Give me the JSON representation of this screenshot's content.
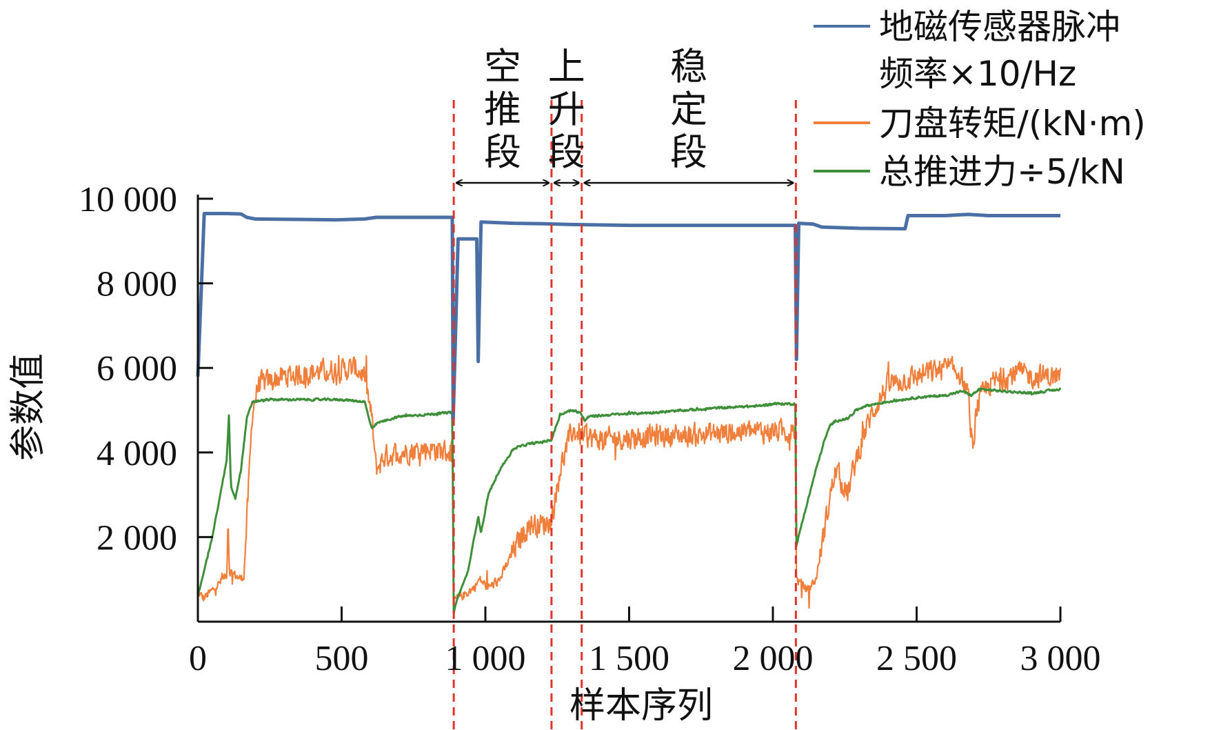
{
  "chart_data": {
    "type": "line",
    "xlabel": "样本序列",
    "ylabel": "参数值",
    "xlim": [
      0,
      3000
    ],
    "ylim": [
      0,
      10000
    ],
    "xticks": [
      0,
      500,
      1000,
      1500,
      2000,
      2500,
      3000
    ],
    "xtick_labels": [
      "0",
      "500",
      "1 000",
      "1 500",
      "2 000",
      "2 500",
      "3 000"
    ],
    "yticks": [
      2000,
      4000,
      6000,
      8000,
      10000
    ],
    "ytick_labels": [
      "2 000",
      "4 000",
      "6 000",
      "8 000",
      "10 000"
    ],
    "grid": false,
    "legend_position": "top-right",
    "legend": [
      {
        "line1": "地磁传感器脉冲",
        "line2": "频率×10/Hz"
      },
      {
        "line1": "刀盘转矩/(kN·m)"
      },
      {
        "line1": "总推进力÷5/kN"
      }
    ],
    "phase_boundaries": [
      890,
      1230,
      1335,
      2080
    ],
    "phases": [
      {
        "label": "空推段",
        "from": 890,
        "to": 1230
      },
      {
        "label": "上升段",
        "from": 1230,
        "to": 1335
      },
      {
        "label": "稳定段",
        "from": 1335,
        "to": 2080
      }
    ],
    "series": [
      {
        "name": "地磁传感器脉冲频率×10/Hz",
        "color": "#4a6fa5",
        "noise": 0,
        "points": [
          [
            0,
            5800
          ],
          [
            22,
            9650
          ],
          [
            100,
            9650
          ],
          [
            150,
            9640
          ],
          [
            170,
            9560
          ],
          [
            200,
            9520
          ],
          [
            350,
            9510
          ],
          [
            480,
            9500
          ],
          [
            580,
            9520
          ],
          [
            620,
            9560
          ],
          [
            720,
            9560
          ],
          [
            885,
            9560
          ],
          [
            888,
            4800
          ],
          [
            895,
            6500
          ],
          [
            905,
            9050
          ],
          [
            970,
            9050
          ],
          [
            975,
            6150
          ],
          [
            985,
            9450
          ],
          [
            1100,
            9420
          ],
          [
            1200,
            9410
          ],
          [
            1300,
            9390
          ],
          [
            1500,
            9370
          ],
          [
            1800,
            9370
          ],
          [
            2000,
            9370
          ],
          [
            2078,
            9370
          ],
          [
            2082,
            6200
          ],
          [
            2090,
            9420
          ],
          [
            2140,
            9400
          ],
          [
            2170,
            9330
          ],
          [
            2300,
            9300
          ],
          [
            2460,
            9290
          ],
          [
            2470,
            9600
          ],
          [
            2600,
            9600
          ],
          [
            2680,
            9630
          ],
          [
            2750,
            9600
          ],
          [
            3000,
            9600
          ]
        ]
      },
      {
        "name": "刀盘转矩/(kN·m)",
        "color": "#f07f3c",
        "noise": 480,
        "points": [
          [
            0,
            700
          ],
          [
            20,
            550
          ],
          [
            60,
            800
          ],
          [
            100,
            1100
          ],
          [
            105,
            2600
          ],
          [
            110,
            1200
          ],
          [
            150,
            1000
          ],
          [
            160,
            1100
          ],
          [
            175,
            3000
          ],
          [
            190,
            5000
          ],
          [
            210,
            5600
          ],
          [
            300,
            5800
          ],
          [
            400,
            5900
          ],
          [
            500,
            5950
          ],
          [
            550,
            6000
          ],
          [
            580,
            5800
          ],
          [
            605,
            4800
          ],
          [
            620,
            3600
          ],
          [
            650,
            3900
          ],
          [
            700,
            4000
          ],
          [
            800,
            4100
          ],
          [
            885,
            4000
          ],
          [
            890,
            500
          ],
          [
            930,
            650
          ],
          [
            960,
            800
          ],
          [
            980,
            1000
          ],
          [
            1010,
            800
          ],
          [
            1050,
            1000
          ],
          [
            1100,
            1700
          ],
          [
            1150,
            2300
          ],
          [
            1200,
            2300
          ],
          [
            1230,
            2400
          ],
          [
            1260,
            3600
          ],
          [
            1300,
            4500
          ],
          [
            1340,
            4400
          ],
          [
            1400,
            4300
          ],
          [
            1500,
            4350
          ],
          [
            1600,
            4400
          ],
          [
            1700,
            4400
          ],
          [
            1800,
            4450
          ],
          [
            1900,
            4500
          ],
          [
            2000,
            4500
          ],
          [
            2078,
            4500
          ],
          [
            2082,
            1000
          ],
          [
            2120,
            750
          ],
          [
            2150,
            1000
          ],
          [
            2180,
            2200
          ],
          [
            2200,
            3000
          ],
          [
            2220,
            3600
          ],
          [
            2260,
            3000
          ],
          [
            2280,
            3600
          ],
          [
            2320,
            4500
          ],
          [
            2350,
            5000
          ],
          [
            2400,
            5600
          ],
          [
            2500,
            5800
          ],
          [
            2600,
            6000
          ],
          [
            2650,
            5900
          ],
          [
            2680,
            5300
          ],
          [
            2695,
            4000
          ],
          [
            2710,
            5100
          ],
          [
            2750,
            5600
          ],
          [
            2850,
            5900
          ],
          [
            2900,
            5800
          ],
          [
            3000,
            5800
          ]
        ]
      },
      {
        "name": "总推进力÷5/kN",
        "color": "#3f8f3a",
        "noise": 45,
        "points": [
          [
            0,
            600
          ],
          [
            50,
            2000
          ],
          [
            100,
            3800
          ],
          [
            108,
            4850
          ],
          [
            115,
            3200
          ],
          [
            130,
            2900
          ],
          [
            150,
            3600
          ],
          [
            170,
            4800
          ],
          [
            190,
            5200
          ],
          [
            250,
            5250
          ],
          [
            350,
            5250
          ],
          [
            500,
            5250
          ],
          [
            580,
            5200
          ],
          [
            605,
            4550
          ],
          [
            625,
            4700
          ],
          [
            700,
            4850
          ],
          [
            800,
            4900
          ],
          [
            885,
            4950
          ],
          [
            890,
            200
          ],
          [
            900,
            500
          ],
          [
            940,
            1200
          ],
          [
            975,
            2500
          ],
          [
            985,
            2100
          ],
          [
            1010,
            3000
          ],
          [
            1050,
            3600
          ],
          [
            1100,
            4100
          ],
          [
            1150,
            4200
          ],
          [
            1200,
            4250
          ],
          [
            1230,
            4300
          ],
          [
            1260,
            4900
          ],
          [
            1300,
            5000
          ],
          [
            1330,
            4950
          ],
          [
            1345,
            4750
          ],
          [
            1360,
            4850
          ],
          [
            1450,
            4900
          ],
          [
            1600,
            4950
          ],
          [
            1800,
            5050
          ],
          [
            1950,
            5100
          ],
          [
            2000,
            5150
          ],
          [
            2078,
            5150
          ],
          [
            2082,
            1800
          ],
          [
            2100,
            2300
          ],
          [
            2150,
            3600
          ],
          [
            2180,
            4300
          ],
          [
            2200,
            4650
          ],
          [
            2220,
            4750
          ],
          [
            2260,
            4800
          ],
          [
            2290,
            5000
          ],
          [
            2320,
            5100
          ],
          [
            2400,
            5200
          ],
          [
            2500,
            5300
          ],
          [
            2600,
            5350
          ],
          [
            2660,
            5450
          ],
          [
            2690,
            5350
          ],
          [
            2720,
            5500
          ],
          [
            2800,
            5450
          ],
          [
            2900,
            5400
          ],
          [
            3000,
            5500
          ]
        ]
      }
    ]
  }
}
